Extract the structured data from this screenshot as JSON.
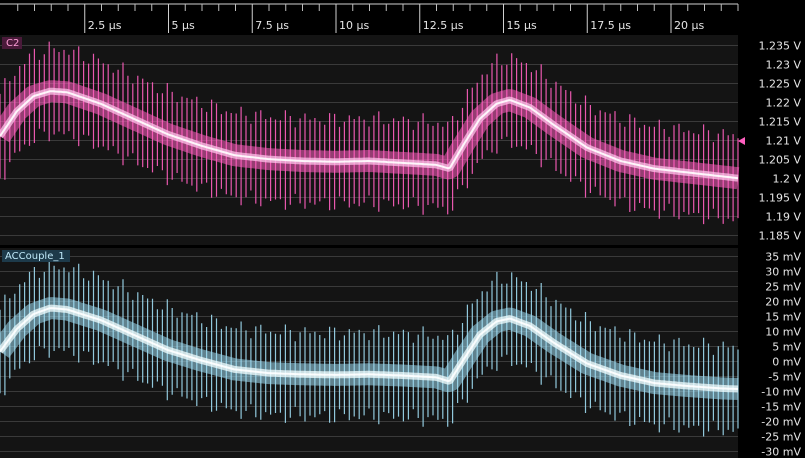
{
  "time_axis": {
    "ticks": [
      "2.5 µs",
      "5 µs",
      "7.5 µs",
      "10 µs",
      "12.5 µs",
      "15 µs",
      "17.5 µs",
      "20 µs"
    ]
  },
  "colors": {
    "background": "#000000",
    "panel": "#141414",
    "grid": "#3a3a3a",
    "channel_c2": "#ff5fbf",
    "channel_c2_core": "#ffc2ea",
    "channel_ac": "#9fdcf2",
    "channel_ac_core": "#f2fdff",
    "channel_c2_label_bg": "#4a1a3a",
    "channel_ac_label_bg": "#1d3a4a"
  },
  "chart_data": [
    {
      "type": "line",
      "channel_label": "C2",
      "x_unit": "µs",
      "xlim": [
        0,
        22
      ],
      "ylim": [
        1.1825,
        1.2375
      ],
      "y_ticks": [
        1.235,
        1.23,
        1.225,
        1.22,
        1.215,
        1.21,
        1.205,
        1.2,
        1.195,
        1.19,
        1.185
      ],
      "y_tick_labels": [
        "1.235 V",
        "1.23 V",
        "1.225 V",
        "1.22 V",
        "1.215 V",
        "1.21 V",
        "1.205 V",
        "1.2 V",
        "1.195 V",
        "1.19 V",
        "1.185 V"
      ],
      "grid": true,
      "series": [
        {
          "x": [
            0,
            0.5,
            1,
            1.5,
            2,
            3,
            4,
            5,
            6,
            7,
            8,
            9,
            10,
            11,
            12,
            13,
            13.4,
            13.8,
            14.3,
            14.8,
            15.2,
            15.8,
            16.5,
            17.5,
            18.5,
            19.5,
            20.5,
            21.5,
            22
          ],
          "y": [
            1.211,
            1.2175,
            1.2215,
            1.2228,
            1.2225,
            1.2195,
            1.2155,
            1.2115,
            1.2085,
            1.206,
            1.205,
            1.2045,
            1.2043,
            1.2045,
            1.204,
            1.2035,
            1.2025,
            1.2085,
            1.2155,
            1.2195,
            1.2205,
            1.2185,
            1.214,
            1.208,
            1.2045,
            1.2025,
            1.2015,
            1.2005,
            1.2
          ],
          "ripple_amplitude": 0.0135
        }
      ]
    },
    {
      "type": "line",
      "channel_label": "ACCouple_1",
      "x_unit": "µs",
      "xlim": [
        0,
        22
      ],
      "ylim": [
        -32.5,
        37.5
      ],
      "y_ticks": [
        35,
        30,
        25,
        20,
        15,
        10,
        5,
        0,
        -5,
        -10,
        -15,
        -20,
        -25,
        -30
      ],
      "y_tick_labels": [
        "35 mV",
        "30 mV",
        "25 mV",
        "20 mV",
        "15 mV",
        "10 mV",
        "5 mV",
        "0 mV",
        "-5 mV",
        "-10 mV",
        "-15 mV",
        "-20 mV",
        "-25 mV",
        "-30 mV"
      ],
      "grid": true,
      "series": [
        {
          "x": [
            0,
            0.5,
            1,
            1.5,
            2,
            3,
            4,
            5,
            6,
            7,
            8,
            9,
            10,
            11,
            12,
            13,
            13.4,
            13.8,
            14.3,
            14.8,
            15.2,
            15.8,
            16.5,
            17.5,
            18.5,
            19.5,
            20.5,
            21.5,
            22
          ],
          "y": [
            3,
            10.5,
            15.5,
            17.5,
            17,
            13.5,
            8.5,
            3.5,
            0,
            -3,
            -4.2,
            -4.6,
            -4.8,
            -4.6,
            -5,
            -5.6,
            -7,
            0,
            8.5,
            13,
            14,
            11.5,
            6,
            -1,
            -5,
            -7.5,
            -8.5,
            -9.3,
            -9.5
          ],
          "ripple_amplitude": 17
        }
      ]
    }
  ]
}
